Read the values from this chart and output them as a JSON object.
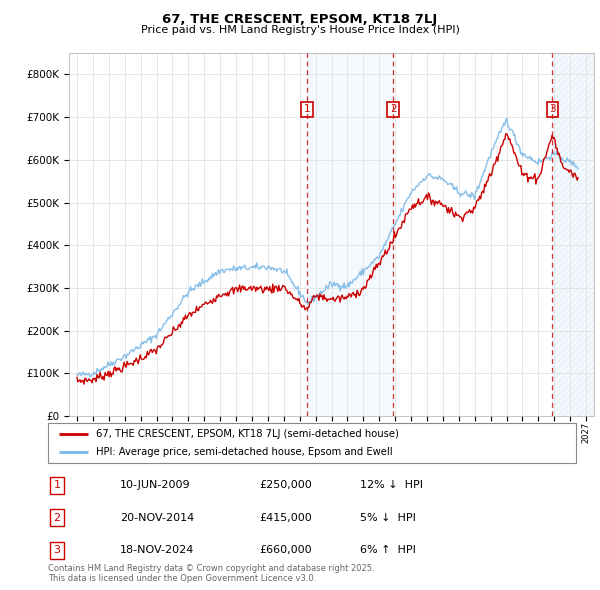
{
  "title": "67, THE CRESCENT, EPSOM, KT18 7LJ",
  "subtitle": "Price paid vs. HM Land Registry's House Price Index (HPI)",
  "legend_line1": "67, THE CRESCENT, EPSOM, KT18 7LJ (semi-detached house)",
  "legend_line2": "HPI: Average price, semi-detached house, Epsom and Ewell",
  "footer": "Contains HM Land Registry data © Crown copyright and database right 2025.\nThis data is licensed under the Open Government Licence v3.0.",
  "sale_markers": [
    {
      "num": 1,
      "date": "10-JUN-2009",
      "price": 250000,
      "pct": "12%",
      "dir": "↓",
      "x_year": 2009.44
    },
    {
      "num": 2,
      "date": "20-NOV-2014",
      "price": 415000,
      "pct": "5%",
      "dir": "↓",
      "x_year": 2014.89
    },
    {
      "num": 3,
      "date": "18-NOV-2024",
      "price": 660000,
      "pct": "6%",
      "dir": "↑",
      "x_year": 2024.89
    }
  ],
  "hpi_color": "#7ab8e8",
  "price_color": "#cc0000",
  "marker_box_color": "#cc0000",
  "shaded_region": [
    2009.44,
    2014.89
  ],
  "hatch_region_start": 2024.89,
  "ylim": [
    0,
    850000
  ],
  "yticks": [
    0,
    100000,
    200000,
    300000,
    400000,
    500000,
    600000,
    700000,
    800000
  ],
  "xlim": [
    1994.5,
    2027.5
  ],
  "xticks": [
    1995,
    1996,
    1997,
    1998,
    1999,
    2000,
    2001,
    2002,
    2003,
    2004,
    2005,
    2006,
    2007,
    2008,
    2009,
    2010,
    2011,
    2012,
    2013,
    2014,
    2015,
    2016,
    2017,
    2018,
    2019,
    2020,
    2021,
    2022,
    2023,
    2024,
    2025,
    2026,
    2027
  ]
}
